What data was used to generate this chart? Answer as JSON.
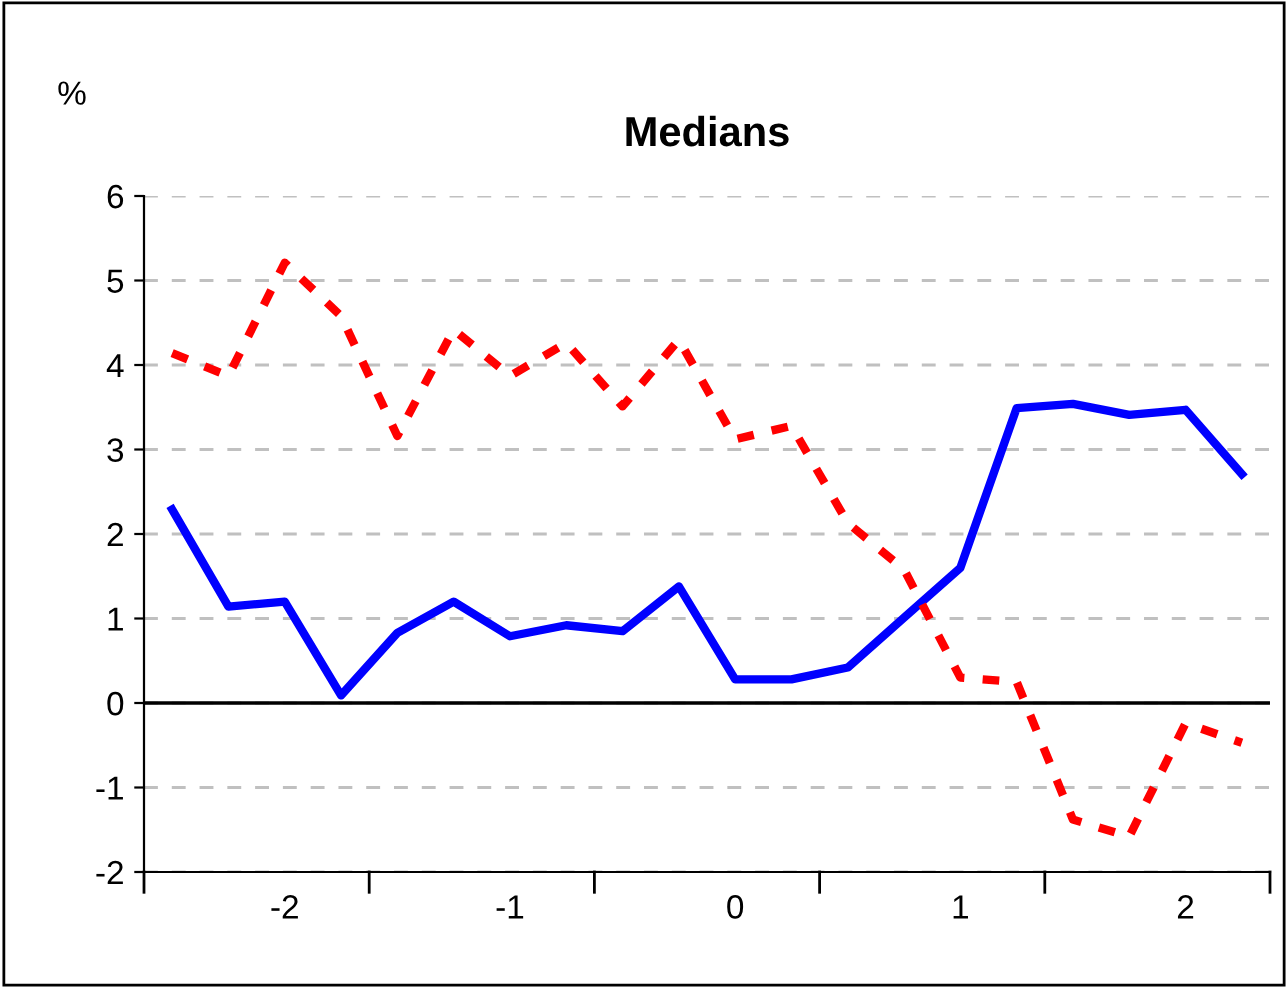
{
  "chart_data": {
    "type": "line",
    "title": "Medians",
    "annotations": [
      "%"
    ],
    "categories": [
      null,
      null,
      "-2",
      null,
      null,
      null,
      "-1",
      null,
      null,
      null,
      "0",
      null,
      null,
      null,
      "1",
      null,
      null,
      null,
      "2",
      null
    ],
    "series": [
      {
        "color": "#0000ff",
        "line_style": "solid",
        "values": [
          2.29,
          1.14,
          1.2,
          0.09,
          0.83,
          1.2,
          0.79,
          0.92,
          0.85,
          1.38,
          0.28,
          0.28,
          0.42,
          1.01,
          1.6,
          3.49,
          3.54,
          3.41,
          3.47,
          2.71
        ]
      },
      {
        "color": "#ff0000",
        "line_style": "dashed",
        "values": [
          4.14,
          3.87,
          5.21,
          4.58,
          3.16,
          4.42,
          3.87,
          4.26,
          3.51,
          4.3,
          3.12,
          3.28,
          2.13,
          1.58,
          0.3,
          0.25,
          -1.38,
          -1.58,
          -0.24,
          -0.47
        ]
      }
    ],
    "ylim": [
      -2,
      6
    ],
    "yticks": [
      -2,
      -1,
      0,
      1,
      2,
      3,
      4,
      5,
      6
    ],
    "grid": "y",
    "marker": "none",
    "ref_lines": [
      {
        "axis": "y",
        "value": 0,
        "color": "#000000"
      }
    ]
  }
}
